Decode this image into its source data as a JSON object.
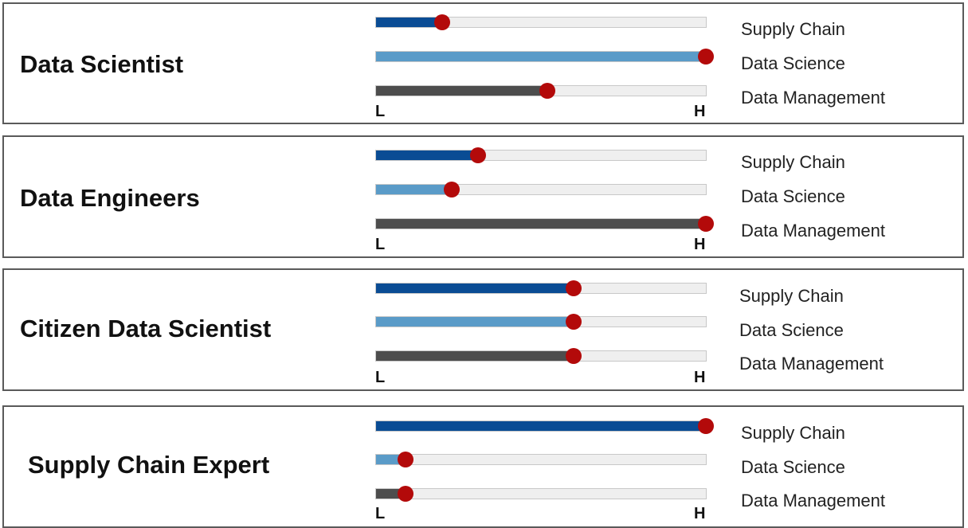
{
  "colors": {
    "supply_chain": "#0a4c94",
    "data_science": "#5a9bc8",
    "data_management": "#4d4d4d",
    "marker": "#b30a0a",
    "track": "#efefef"
  },
  "axis": {
    "low": "L",
    "high": "H"
  },
  "chart_data": {
    "type": "bar",
    "orientation": "horizontal",
    "scale": {
      "min": 0,
      "max": 1,
      "low_label": "L",
      "high_label": "H"
    },
    "categories": [
      "Supply Chain",
      "Data Science",
      "Data Management"
    ],
    "groups": [
      {
        "title": "Data Scientist",
        "values": [
          0.2,
          1.0,
          0.52
        ]
      },
      {
        "title": "Data Engineers",
        "values": [
          0.31,
          0.23,
          1.0
        ]
      },
      {
        "title": "Citizen Data Scientist",
        "values": [
          0.6,
          0.6,
          0.6
        ]
      },
      {
        "title": "Supply Chain Expert",
        "values": [
          1.0,
          0.09,
          0.09
        ]
      }
    ]
  }
}
